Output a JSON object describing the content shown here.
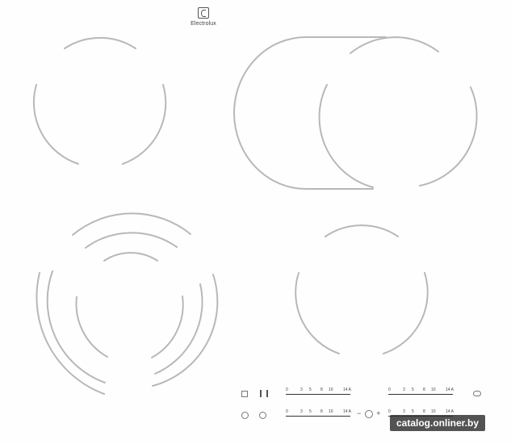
{
  "brand": {
    "name": "Electrolux"
  },
  "zones": [
    {
      "name": "zone-front-left"
    },
    {
      "name": "zone-rear-left"
    },
    {
      "name": "zone-rear-right-oval"
    },
    {
      "name": "zone-front-right"
    }
  ],
  "controls": {
    "slider_scale_1": [
      "0",
      "3",
      "5",
      "8",
      "10",
      "14 A"
    ],
    "slider_scale_2": [
      "0",
      "3",
      "5",
      "8",
      "10",
      "14 A"
    ],
    "slider_scale_3": [
      "0",
      "3",
      "5",
      "8",
      "10",
      "14 A"
    ],
    "slider_scale_4": [
      "0",
      "3",
      "5",
      "8",
      "10",
      "14 A"
    ],
    "timer": {
      "minus": "−",
      "plus": "+"
    }
  },
  "watermark": {
    "text": "catalog.onliner.by"
  },
  "colors": {
    "surface": "#fefefe",
    "marking": "#b9b9b9",
    "text": "#444444"
  },
  "icons": [
    "lock-icon",
    "pause-icon",
    "power-icon",
    "bridge-icon",
    "timer-icon",
    "toggle-icon"
  ]
}
